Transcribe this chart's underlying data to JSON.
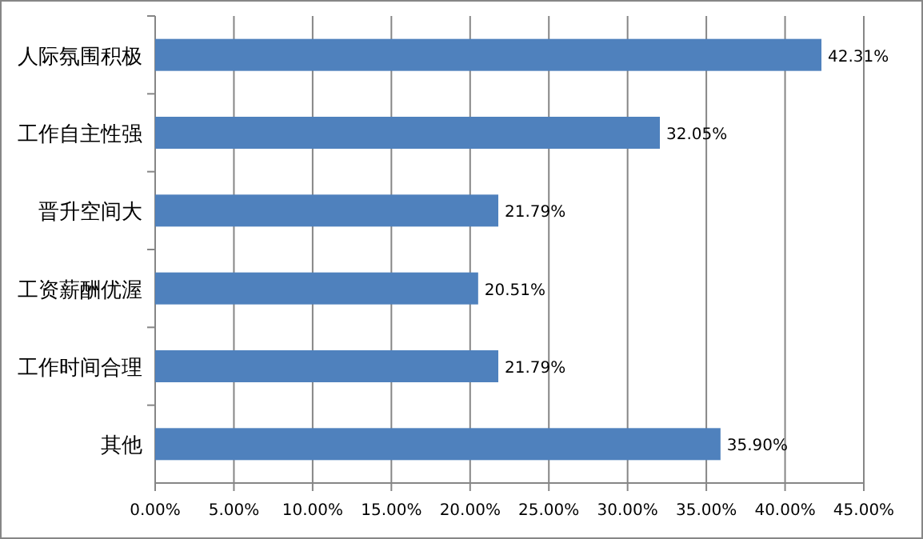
{
  "chart_data": {
    "type": "bar",
    "orientation": "horizontal",
    "categories": [
      "人际氛围积极",
      "工作自主性强",
      "晋升空间大",
      "工资薪酬优渥",
      "工作时间合理",
      "其他"
    ],
    "values": [
      42.31,
      32.05,
      21.79,
      20.51,
      21.79,
      35.9
    ],
    "value_labels": [
      "42.31%",
      "32.05%",
      "21.79%",
      "20.51%",
      "21.79%",
      "35.90%"
    ],
    "color": "#4f81bd",
    "xlim": [
      0,
      45
    ],
    "xticks": [
      {
        "value": 0,
        "label": "0.00%"
      },
      {
        "value": 5,
        "label": "5.00%"
      },
      {
        "value": 10,
        "label": "10.00%"
      },
      {
        "value": 15,
        "label": "15.00%"
      },
      {
        "value": 20,
        "label": "20.00%"
      },
      {
        "value": 25,
        "label": "25.00%"
      },
      {
        "value": 30,
        "label": "30.00%"
      },
      {
        "value": 35,
        "label": "35.00%"
      },
      {
        "value": 40,
        "label": "40.00%"
      },
      {
        "value": 45,
        "label": "45.00%"
      }
    ],
    "grid": "x"
  }
}
